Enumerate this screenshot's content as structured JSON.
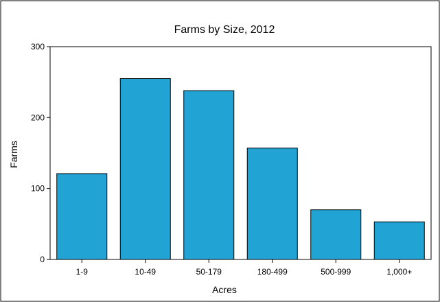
{
  "chart_data": {
    "type": "bar",
    "title": "Farms by Size, 2012",
    "xlabel": "Acres",
    "ylabel": "Farms",
    "categories": [
      "1-9",
      "10-49",
      "50-179",
      "180-499",
      "500-999",
      "1,000+"
    ],
    "values": [
      121,
      255,
      238,
      157,
      70,
      53
    ],
    "ylim": [
      0,
      300
    ],
    "yticks": [
      0,
      100,
      200,
      300
    ],
    "grid": false,
    "legend": "none",
    "bar_color": "#21a3d4",
    "bar_stroke": "#000000"
  }
}
